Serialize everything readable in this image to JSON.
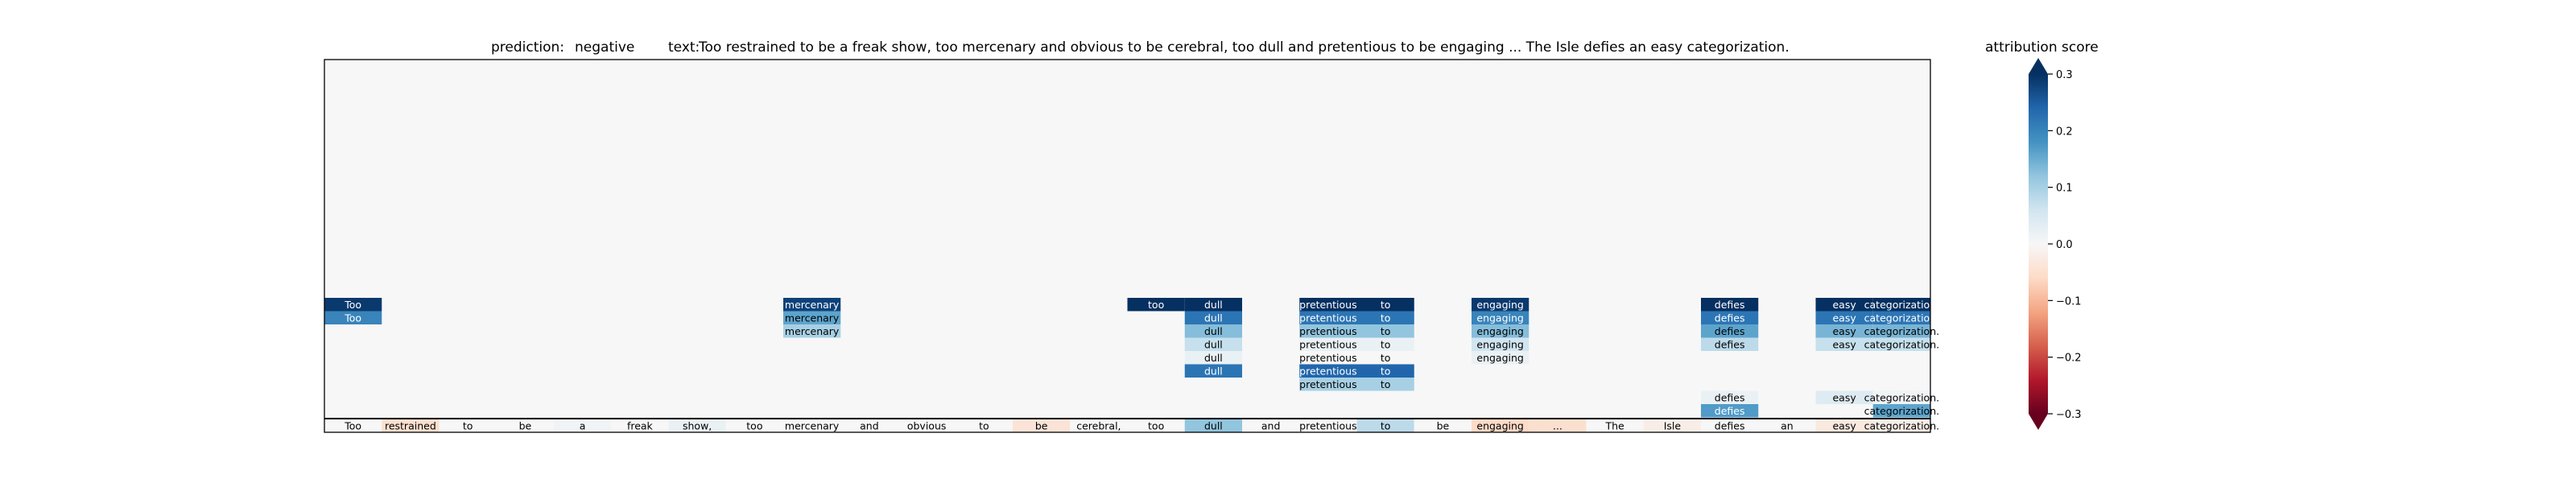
{
  "chart_data": {
    "type": "heatmap",
    "title": {
      "prediction_label": "prediction:",
      "prediction_value": "negative",
      "text_label": "text:",
      "text_value": "Too restrained to be a freak show, too mercenary and obvious to be cerebral, too dull and pretentious to be engaging ... The Isle defies an easy categorization."
    },
    "tokens": [
      "Too",
      "restrained",
      "to",
      "be",
      "a",
      "freak",
      "show,",
      "too",
      "mercenary",
      "and",
      "obvious",
      "to",
      "be",
      "cerebral,",
      "too",
      "dull",
      "and",
      "pretentious",
      "to",
      "be",
      "engaging",
      "...",
      "The",
      "Isle",
      "defies",
      "an",
      "easy",
      "categorization."
    ],
    "base_scores": [
      0.0,
      -0.05,
      0.0,
      0.0,
      0.01,
      0.0,
      0.02,
      0.0,
      0.0,
      0.0,
      0.0,
      0.0,
      -0.04,
      0.0,
      0.0,
      0.12,
      0.0,
      0.0,
      0.08,
      0.0,
      -0.06,
      -0.05,
      0.0,
      -0.02,
      0.0,
      0.0,
      -0.03,
      -0.02
    ],
    "upper_cells": [
      {
        "level": 0,
        "tok": 0,
        "label": "Too",
        "score": 0.29
      },
      {
        "level": 1,
        "tok": 0,
        "label": "Too",
        "score": 0.2
      },
      {
        "level": 0,
        "tok": 8,
        "label": "mercenary",
        "score": 0.28
      },
      {
        "level": 1,
        "tok": 8,
        "label": "mercenary",
        "score": 0.16
      },
      {
        "level": 2,
        "tok": 8,
        "label": "mercenary",
        "score": 0.1
      },
      {
        "level": 0,
        "tok": 14,
        "label": "too",
        "score": 0.3
      },
      {
        "level": 0,
        "tok": 15,
        "label": "dull",
        "score": 0.3
      },
      {
        "level": 1,
        "tok": 15,
        "label": "dull",
        "score": 0.22
      },
      {
        "level": 2,
        "tok": 15,
        "label": "dull",
        "score": 0.13
      },
      {
        "level": 3,
        "tok": 15,
        "label": "dull",
        "score": 0.07
      },
      {
        "level": 4,
        "tok": 15,
        "label": "dull",
        "score": 0.02
      },
      {
        "level": 5,
        "tok": 15,
        "label": "dull",
        "score": 0.22
      },
      {
        "level": 0,
        "tok": 17,
        "label": "pretentious",
        "score": 0.3
      },
      {
        "level": 0,
        "tok": 18,
        "label": "to",
        "score": 0.3
      },
      {
        "level": 1,
        "tok": 17,
        "label": "pretentious",
        "score": 0.22
      },
      {
        "level": 1,
        "tok": 18,
        "label": "to",
        "score": 0.22
      },
      {
        "level": 2,
        "tok": 17,
        "label": "pretentious",
        "score": 0.12
      },
      {
        "level": 2,
        "tok": 18,
        "label": "to",
        "score": 0.12
      },
      {
        "level": 3,
        "tok": 17,
        "label": "pretentious",
        "score": 0.02
      },
      {
        "level": 3,
        "tok": 18,
        "label": "to",
        "score": 0.02
      },
      {
        "level": 4,
        "tok": 17,
        "label": "pretentious",
        "score": 0.0
      },
      {
        "level": 4,
        "tok": 18,
        "label": "to",
        "score": 0.0
      },
      {
        "level": 5,
        "tok": 17,
        "label": "pretentious",
        "score": 0.24
      },
      {
        "level": 5,
        "tok": 18,
        "label": "to",
        "score": 0.24
      },
      {
        "level": 6,
        "tok": 17,
        "label": "pretentious",
        "score": 0.1
      },
      {
        "level": 6,
        "tok": 18,
        "label": "to",
        "score": 0.1
      },
      {
        "level": 0,
        "tok": 20,
        "label": "engaging",
        "score": 0.29
      },
      {
        "level": 1,
        "tok": 20,
        "label": "engaging",
        "score": 0.2
      },
      {
        "level": 2,
        "tok": 20,
        "label": "engaging",
        "score": 0.13
      },
      {
        "level": 3,
        "tok": 20,
        "label": "engaging",
        "score": 0.06
      },
      {
        "level": 4,
        "tok": 20,
        "label": "engaging",
        "score": 0.02
      },
      {
        "level": 0,
        "tok": 24,
        "label": "defies",
        "score": 0.3
      },
      {
        "level": 1,
        "tok": 24,
        "label": "defies",
        "score": 0.22
      },
      {
        "level": 2,
        "tok": 24,
        "label": "defies",
        "score": 0.16
      },
      {
        "level": 3,
        "tok": 24,
        "label": "defies",
        "score": 0.08
      },
      {
        "level": 7,
        "tok": 24,
        "label": "defies",
        "score": 0.02
      },
      {
        "level": 8,
        "tok": 24,
        "label": "defies",
        "score": 0.17
      },
      {
        "level": 0,
        "tok": 26,
        "label": "easy",
        "score": 0.3
      },
      {
        "level": 0,
        "tok": 27,
        "label": "categorization.",
        "score": 0.3
      },
      {
        "level": 1,
        "tok": 26,
        "label": "easy",
        "score": 0.22
      },
      {
        "level": 1,
        "tok": 27,
        "label": "categorization.",
        "score": 0.22
      },
      {
        "level": 2,
        "tok": 26,
        "label": "easy",
        "score": 0.14
      },
      {
        "level": 2,
        "tok": 27,
        "label": "categorization.",
        "score": 0.14
      },
      {
        "level": 3,
        "tok": 26,
        "label": "easy",
        "score": 0.07
      },
      {
        "level": 3,
        "tok": 27,
        "label": "categorization.",
        "score": 0.07
      },
      {
        "level": 7,
        "tok": 26,
        "label": "easy",
        "score": 0.04
      },
      {
        "level": 7,
        "tok": 27,
        "label": "categorization.",
        "score": 0.01
      },
      {
        "level": 8,
        "tok": 27,
        "label": "categorization.",
        "score": 0.16
      }
    ],
    "colorbar": {
      "label": "attribution score",
      "range": [
        -0.3,
        0.3
      ],
      "ticks": [
        {
          "value": 0.3,
          "label": "0.3"
        },
        {
          "value": 0.2,
          "label": "0.2"
        },
        {
          "value": 0.1,
          "label": "0.1"
        },
        {
          "value": 0.0,
          "label": "0.0"
        },
        {
          "value": -0.1,
          "label": "−0.1"
        },
        {
          "value": -0.2,
          "label": "−0.2"
        },
        {
          "value": -0.3,
          "label": "−0.3"
        }
      ],
      "colormap": "RdBu",
      "colors": [
        "#67001f",
        "#b2182b",
        "#d6604d",
        "#f4a582",
        "#fddbc7",
        "#f7f7f7",
        "#d1e5f0",
        "#92c5de",
        "#4393c3",
        "#2166ac",
        "#053061"
      ],
      "extend": "both"
    },
    "background": "#f7f7f7"
  }
}
